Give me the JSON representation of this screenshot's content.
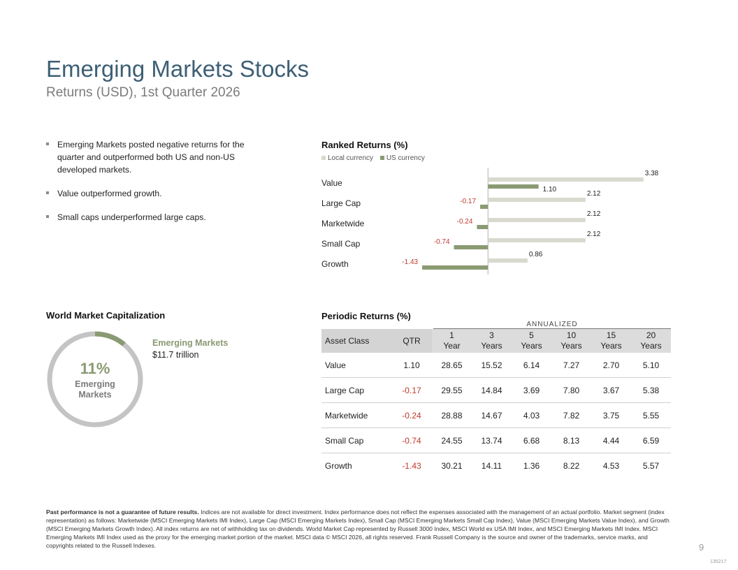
{
  "header": {
    "title": "Emerging Markets Stocks",
    "subtitle": "Returns (USD), 1st Quarter 2026"
  },
  "bullets": [
    "Emerging Markets posted negative returns for the quarter and outperformed both US and non-US developed markets.",
    "Value outperformed growth.",
    "Small caps underperformed large caps."
  ],
  "colors": {
    "title": "#3d5f75",
    "local_bar": "#d9d9cf",
    "us_bar": "#8a9a72",
    "negative": "#c0392b",
    "donut_track": "#c4c4c4",
    "donut_accent": "#8a9a72"
  },
  "ranked": {
    "title": "Ranked Returns (%)",
    "legend": {
      "local": "Local currency",
      "us": "US currency"
    }
  },
  "chart_data": {
    "type": "bar",
    "orientation": "horizontal",
    "title": "Ranked Returns (%)",
    "categories": [
      "Value",
      "Large Cap",
      "Marketwide",
      "Small Cap",
      "Growth"
    ],
    "series": [
      {
        "name": "Local currency",
        "values": [
          3.38,
          2.12,
          2.12,
          2.12,
          0.86
        ],
        "labels": [
          "3.38",
          "2.12",
          "2.12",
          "2.12",
          "0.86"
        ]
      },
      {
        "name": "US currency",
        "values": [
          1.1,
          -0.17,
          -0.24,
          -0.74,
          -1.43
        ],
        "labels": [
          "1.10",
          "-0.17",
          "-0.24",
          "-0.74",
          "-1.43"
        ]
      }
    ],
    "xlim": [
      -2.1,
      3.9
    ],
    "grid": false,
    "legend": "top-left"
  },
  "world": {
    "title": "World Market Capitalization",
    "share": 0.11,
    "pct_label": "11%",
    "center_line1": "Emerging",
    "center_line2": "Markets",
    "legend_name": "Emerging Markets",
    "legend_value": "$11.7 trillion"
  },
  "periodic": {
    "title": "Periodic Returns (%)",
    "annualized": "ANNUALIZED",
    "headers": [
      {
        "l1": "Asset Class",
        "l2": ""
      },
      {
        "l1": "QTR",
        "l2": ""
      },
      {
        "l1": "1",
        "l2": "Year"
      },
      {
        "l1": "3",
        "l2": "Years"
      },
      {
        "l1": "5",
        "l2": "Years"
      },
      {
        "l1": "10",
        "l2": "Years"
      },
      {
        "l1": "15",
        "l2": "Years"
      },
      {
        "l1": "20",
        "l2": "Years"
      }
    ],
    "rows": [
      {
        "name": "Value",
        "qtr": "1.10",
        "y1": "28.65",
        "y3": "15.52",
        "y5": "6.14",
        "y10": "7.27",
        "y15": "2.70",
        "y20": "5.10"
      },
      {
        "name": "Large Cap",
        "qtr": "-0.17",
        "y1": "29.55",
        "y3": "14.84",
        "y5": "3.69",
        "y10": "7.80",
        "y15": "3.67",
        "y20": "5.38"
      },
      {
        "name": "Marketwide",
        "qtr": "-0.24",
        "y1": "28.88",
        "y3": "14.67",
        "y5": "4.03",
        "y10": "7.82",
        "y15": "3.75",
        "y20": "5.55"
      },
      {
        "name": "Small Cap",
        "qtr": "-0.74",
        "y1": "24.55",
        "y3": "13.74",
        "y5": "6.68",
        "y10": "8.13",
        "y15": "4.44",
        "y20": "6.59"
      },
      {
        "name": "Growth",
        "qtr": "-1.43",
        "y1": "30.21",
        "y3": "14.11",
        "y5": "1.36",
        "y10": "8.22",
        "y15": "4.53",
        "y20": "5.57"
      }
    ]
  },
  "footnote": {
    "bold": "Past performance is not a guarantee of future results.",
    "text": " Indices are not available for direct investment. Index performance does not reflect the expenses associated with the management of an actual portfolio. Market segment (index representation) as follows: Marketwide (MSCI Emerging Markets IMI Index), Large Cap (MSCI Emerging Markets Index), Small Cap (MSCI Emerging Markets Small Cap Index), Value (MSCI Emerging Markets Value Index), and Growth (MSCI Emerging Markets Growth Index). All index returns are net of withholding tax on dividends. World Market Cap represented by Russell 3000 Index, MSCI World ex USA IMI Index, and MSCI Emerging Markets IMI Index. MSCI Emerging Markets IMI Index used as the proxy for the emerging market portion of the market. MSCI data © MSCI 2026, all rights reserved. Frank Russell Company is the source and owner of the trademarks, service marks, and copyrights related to the Russell Indexes."
  },
  "page": {
    "number": "9",
    "code": "135217"
  }
}
